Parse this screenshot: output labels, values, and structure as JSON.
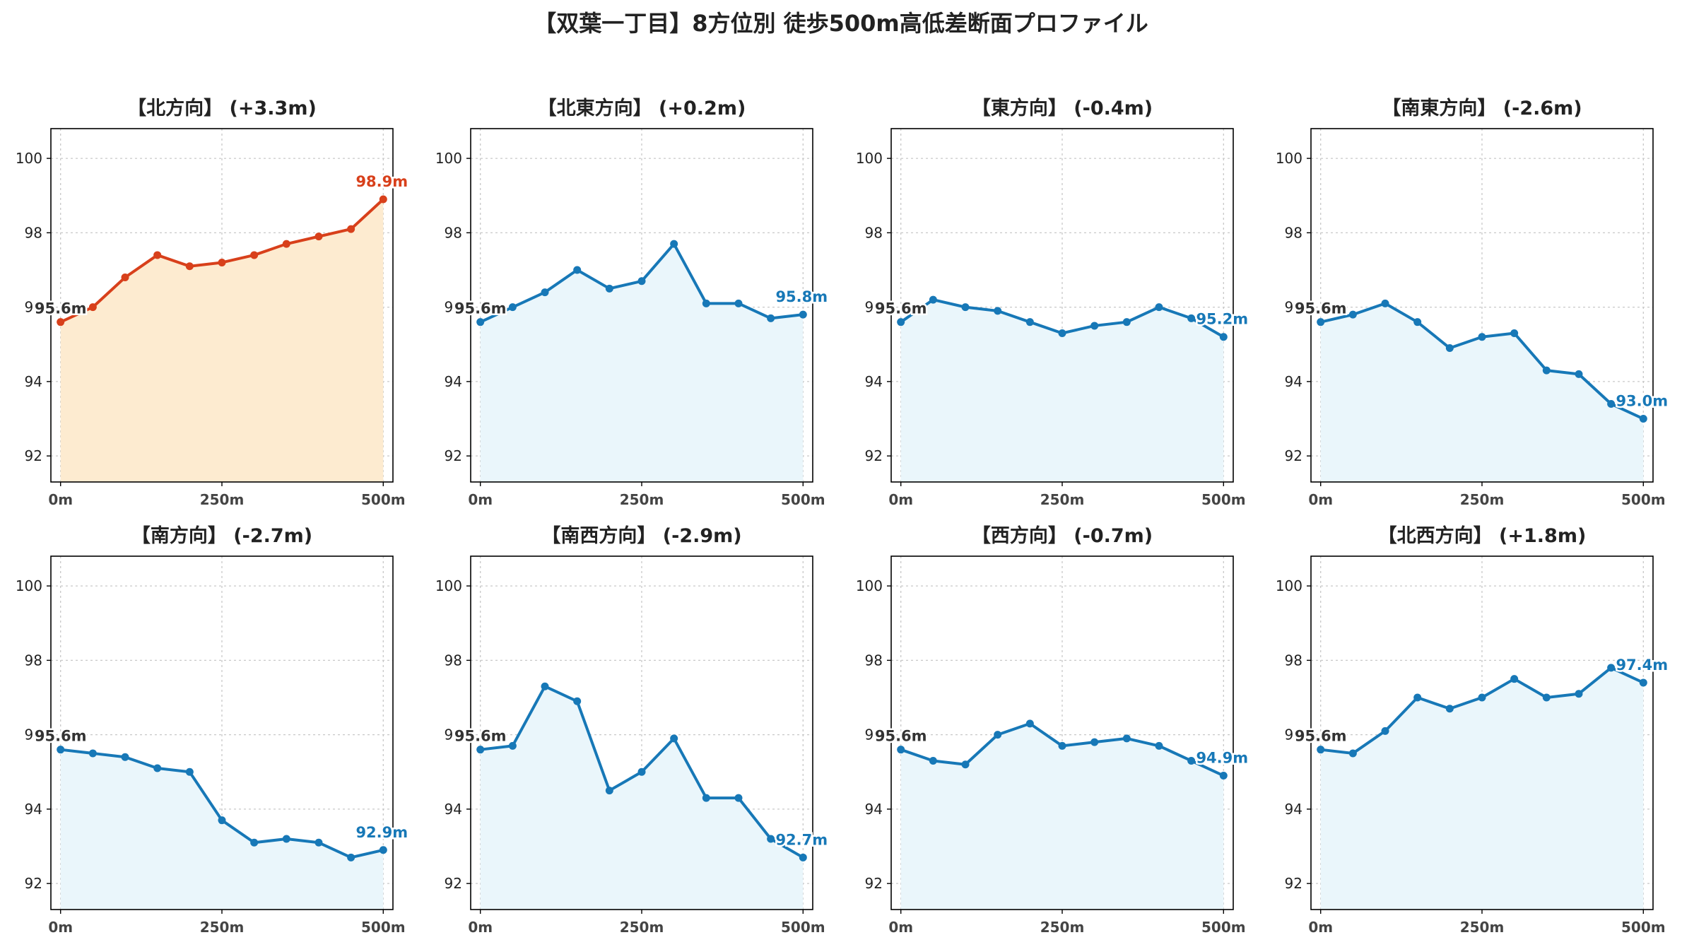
{
  "chart_data": {
    "type": "line",
    "title": "【双葉一丁目】8方位別 徒歩500m高低差断面プロファイル",
    "x": [
      0,
      50,
      100,
      150,
      200,
      250,
      300,
      350,
      400,
      450,
      500
    ],
    "xticks": [
      0,
      250,
      500
    ],
    "xtick_labels": [
      "0m",
      "250m",
      "500m"
    ],
    "yticks": [
      92,
      94,
      96,
      98,
      100
    ],
    "ylim": [
      91.3,
      100.8
    ],
    "xlim": [
      -15,
      515
    ],
    "grid": true,
    "colors": {
      "up": "#d8401b",
      "up_fill": "#fdebd0",
      "down": "#1778b7",
      "down_fill": "#eaf6fb",
      "start_label": "#333333"
    },
    "panels": [
      {
        "title": "【北方向】 (+3.3m)",
        "trend": "up",
        "start_label": "95.6m",
        "end_label": "98.9m",
        "values": [
          95.6,
          96.0,
          96.8,
          97.4,
          97.1,
          97.2,
          97.4,
          97.7,
          97.9,
          98.1,
          98.9
        ]
      },
      {
        "title": "【北東方向】 (+0.2m)",
        "trend": "down",
        "start_label": "95.6m",
        "end_label": "95.8m",
        "values": [
          95.6,
          96.0,
          96.4,
          97.0,
          96.5,
          96.7,
          97.7,
          96.1,
          96.1,
          95.7,
          95.8
        ]
      },
      {
        "title": "【東方向】 (-0.4m)",
        "trend": "down",
        "start_label": "95.6m",
        "end_label": "95.2m",
        "values": [
          95.6,
          96.2,
          96.0,
          95.9,
          95.6,
          95.3,
          95.5,
          95.6,
          96.0,
          95.7,
          95.2
        ]
      },
      {
        "title": "【南東方向】 (-2.6m)",
        "trend": "down",
        "start_label": "95.6m",
        "end_label": "93.0m",
        "values": [
          95.6,
          95.8,
          96.1,
          95.6,
          94.9,
          95.2,
          95.3,
          94.3,
          94.2,
          93.4,
          93.0
        ]
      },
      {
        "title": "【南方向】 (-2.7m)",
        "trend": "down",
        "start_label": "95.6m",
        "end_label": "92.9m",
        "values": [
          95.6,
          95.5,
          95.4,
          95.1,
          95.0,
          93.7,
          93.1,
          93.2,
          93.1,
          92.7,
          92.9
        ]
      },
      {
        "title": "【南西方向】 (-2.9m)",
        "trend": "down",
        "start_label": "95.6m",
        "end_label": "92.7m",
        "values": [
          95.6,
          95.7,
          97.3,
          96.9,
          94.5,
          95.0,
          95.9,
          94.3,
          94.3,
          93.2,
          92.7
        ]
      },
      {
        "title": "【西方向】 (-0.7m)",
        "trend": "down",
        "start_label": "95.6m",
        "end_label": "94.9m",
        "values": [
          95.6,
          95.3,
          95.2,
          96.0,
          96.3,
          95.7,
          95.8,
          95.9,
          95.7,
          95.3,
          94.9
        ]
      },
      {
        "title": "【北西方向】 (+1.8m)",
        "trend": "down",
        "start_label": "95.6m",
        "end_label": "97.4m",
        "values": [
          95.6,
          95.5,
          96.1,
          97.0,
          96.7,
          97.0,
          97.5,
          97.0,
          97.1,
          97.8,
          97.4
        ]
      }
    ]
  }
}
